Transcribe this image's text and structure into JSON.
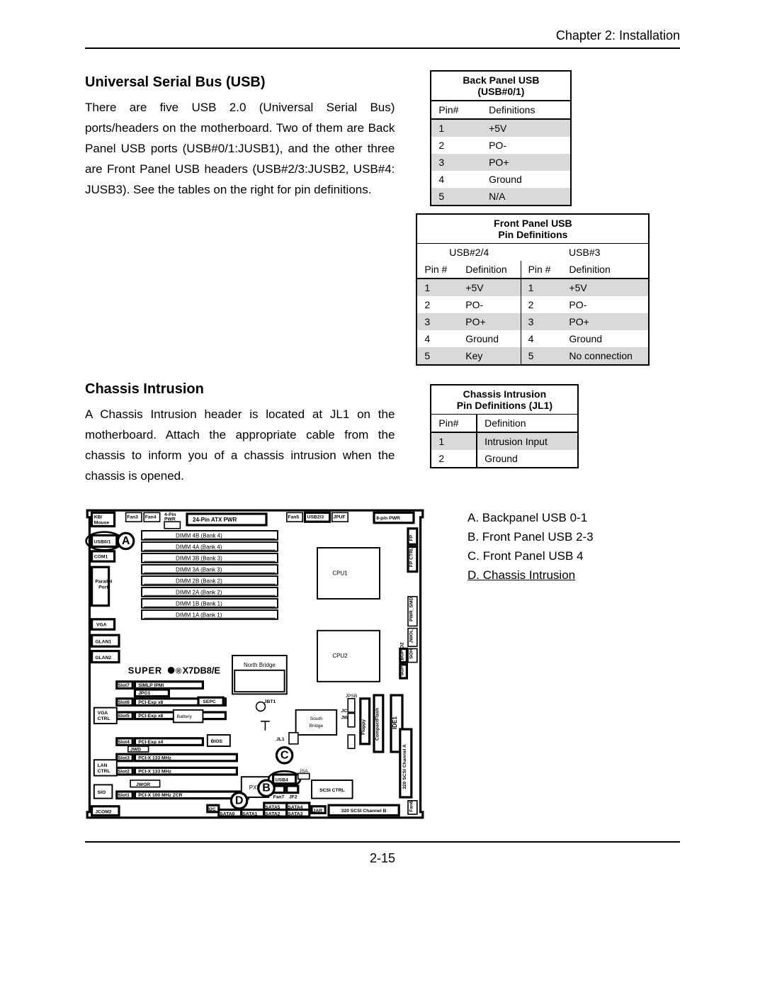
{
  "header": {
    "chapter": "Chapter 2: Installation"
  },
  "usb": {
    "title": "Universal Serial Bus (USB)",
    "body": "There are five USB 2.0 (Universal Serial Bus) ports/headers on the motherboard. Two of them are Back Panel USB ports (USB#0/1:JUSB1), and the other three are Front Panel USB headers (USB#2/3:JUSB2, USB#4: JUSB3). See the tables on the right for pin definitions."
  },
  "chassis": {
    "title": "Chassis Intrusion",
    "body": "A Chassis Intrusion header  is located at JL1 on the motherboard.  Attach the appropriate cable from the chassis to inform you of a chassis intrusion when the chassis is opened."
  },
  "tables": {
    "back": {
      "title1": "Back Panel USB",
      "title2": "(USB#0/1)",
      "cols": [
        "Pin#",
        "Definitions"
      ],
      "rows": [
        {
          "pin": "1",
          "def": "+5V",
          "shade": true
        },
        {
          "pin": "2",
          "def": "PO-",
          "shade": false
        },
        {
          "pin": "3",
          "def": "PO+",
          "shade": true
        },
        {
          "pin": "4",
          "def": "Ground",
          "shade": false
        },
        {
          "pin": "5",
          "def": "N/A",
          "shade": true
        }
      ]
    },
    "front": {
      "title1": "Front Panel USB",
      "title2": "Pin Definitions",
      "sub_left": "USB#2/4",
      "sub_right": "USB#3",
      "cols": [
        "Pin #",
        "Definition",
        "Pin #",
        "Definition"
      ],
      "rows": [
        {
          "p1": "1",
          "d1": "+5V",
          "p2": "1",
          "d2": "+5V",
          "shade": true
        },
        {
          "p1": "2",
          "d1": "PO-",
          "p2": "2",
          "d2": "PO-",
          "shade": false
        },
        {
          "p1": "3",
          "d1": "PO+",
          "p2": "3",
          "d2": "PO+",
          "shade": true
        },
        {
          "p1": "4",
          "d1": "Ground",
          "p2": "4",
          "d2": "Ground",
          "shade": false
        },
        {
          "p1": "5",
          "d1": "Key",
          "p2": "5",
          "d2": "No connection",
          "shade": true
        }
      ]
    },
    "ci": {
      "title1": "Chassis Intrusion",
      "title2": "Pin Definitions (JL1)",
      "cols": [
        "Pin#",
        "Definition"
      ],
      "rows": [
        {
          "pin": "1",
          "def": "Intrusion Input",
          "shade": true
        },
        {
          "pin": "2",
          "def": "Ground",
          "shade": false
        }
      ]
    }
  },
  "legend": {
    "a": "A. Backpanel USB 0-1",
    "b": "B. Front Panel USB 2-3",
    "c": "C. Front Panel USB 4",
    "d": "D. Chassis Intrusion"
  },
  "diagram": {
    "board_model": "X7DB8/E",
    "brand_prefix": "SUPER",
    "dimm": [
      "DIMM 4B (Bank 4)",
      "DIMM 4A (Bank 4)",
      "DIMM 3B (Bank 3)",
      "DIMM 3A (Bank 3)",
      "DIMM 2B (Bank 2)",
      "DIMM 2A (Bank 2)",
      "DIMM 1B (Bank 1)",
      "DIMM 1A (Bank 1)"
    ],
    "left_ports": [
      "KB/Mouse",
      "USB0/1",
      "COM1",
      "Parallel Port",
      "VGA",
      "GLAN1",
      "GLAN2"
    ],
    "cpu1": "CPU1",
    "cpu2": "CPU2",
    "north": "North Bridge",
    "south": "South Bridge",
    "pxh": "PXH",
    "scsi_ctrl": "SCSI CTRL",
    "bios": "BIOS",
    "battery": "Battery",
    "slots": [
      "SIMLP IPMI",
      "JPG1",
      "PCI-Exp x8",
      "PCI-Exp x8",
      "PCI-Exp x4",
      "PCI-X 133 MHz",
      "PCI-X 133 MHz",
      "PCI-X 100 MHz  ZCR"
    ],
    "slot_prefix": [
      "Slot7",
      "",
      "Slot6",
      "Slot5",
      "Slot4",
      "Slot3",
      "Slot2",
      "Slot1"
    ],
    "sepc": "SEPC",
    "jwd": "JWD",
    "jwor": "JWOR",
    "vga_ctrl": "VGA CTRL",
    "lan_ctrl": "LAN CTRL",
    "sio": "SIO",
    "jcom2": "JCOM2",
    "jbt1": "JBT1",
    "usb4": "USB4",
    "jl1": "JL1",
    "jcf1": "JCF1",
    "jwf1": "JWF1",
    "floppy": "Floppy",
    "compactflash": "CompactFlash",
    "ide1": "IDE1",
    "scsi_a": "320 SCSI Channel A",
    "scsi_b": "320 SCSI Channel B",
    "sgpio1": "SGPIO1",
    "sgpio2": "SGPIO2",
    "sata_top": [
      "SATA5",
      "SATA4"
    ],
    "sata_bot": [
      "SATA0",
      "SATA1",
      "SATA2",
      "SATA3"
    ],
    "top_conns": {
      "fan3": "Fan3",
      "fan4": "Fan4",
      "fourpin": "4-Pin PWR",
      "atx": "24-Pin ATX PWR",
      "fan5": "Fan5",
      "usb23": "USB2/3",
      "jpuf": "JPUF",
      "eightpin": "8-pin PWR"
    },
    "right_conns": {
      "fp": "FP",
      "fpctrl": "FP CTRL",
      "pwr_smd": "PWR_SMD",
      "jwol": "JWOL",
      "soh": "SOH"
    },
    "callouts": {
      "a": "A",
      "b": "B",
      "c": "C",
      "d": "D"
    },
    "i2c": "I2C",
    "fan6": "Fan6",
    "jar": "JAR"
  },
  "page_number": "2-15"
}
